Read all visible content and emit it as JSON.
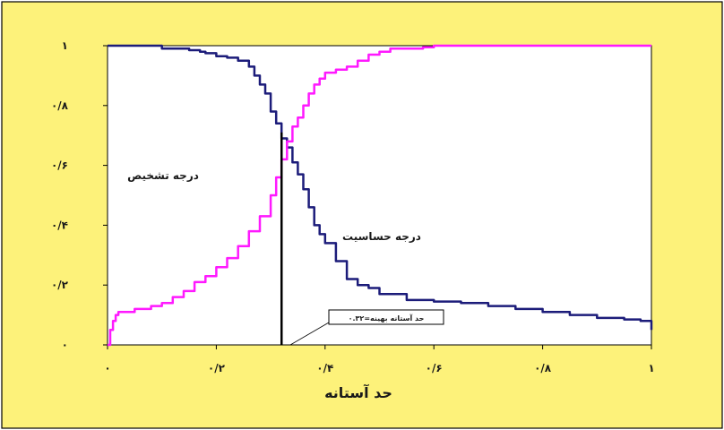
{
  "chart_data": {
    "type": "line",
    "xlabel": "حد آستانه",
    "ylabel": "",
    "xlim": [
      0,
      1
    ],
    "ylim": [
      0,
      1
    ],
    "x_ticks": [
      {
        "value": 0,
        "label": "۰"
      },
      {
        "value": 0.2,
        "label": "۰/۲"
      },
      {
        "value": 0.4,
        "label": "۰/۴"
      },
      {
        "value": 0.6,
        "label": "۰/۶"
      },
      {
        "value": 0.8,
        "label": "۰/۸"
      },
      {
        "value": 1,
        "label": "۱"
      }
    ],
    "y_ticks": [
      {
        "value": 0,
        "label": "۰"
      },
      {
        "value": 0.2,
        "label": "۰/۲"
      },
      {
        "value": 0.4,
        "label": "۰/۴"
      },
      {
        "value": 0.6,
        "label": "۰/۶"
      },
      {
        "value": 0.8,
        "label": "۰/۸"
      },
      {
        "value": 1,
        "label": "۱"
      }
    ],
    "grid": false,
    "legend": "none",
    "colors": {
      "background": "#fdf27a",
      "plot_area": "#ffffff",
      "sensitivity": "#1c1c7a",
      "specificity": "#ff19ff",
      "threshold": "#000000"
    },
    "series": [
      {
        "color": "#1c1c7a",
        "x": [
          0.0,
          0.05,
          0.1,
          0.12,
          0.15,
          0.17,
          0.18,
          0.2,
          0.22,
          0.24,
          0.26,
          0.27,
          0.28,
          0.29,
          0.3,
          0.31,
          0.32,
          0.33,
          0.34,
          0.35,
          0.36,
          0.37,
          0.38,
          0.39,
          0.4,
          0.42,
          0.44,
          0.46,
          0.48,
          0.5,
          0.55,
          0.6,
          0.65,
          0.7,
          0.75,
          0.8,
          0.85,
          0.9,
          0.95,
          0.98,
          1.0
        ],
        "y": [
          1.0,
          1.0,
          0.99,
          0.99,
          0.985,
          0.98,
          0.975,
          0.965,
          0.96,
          0.95,
          0.93,
          0.9,
          0.87,
          0.84,
          0.78,
          0.74,
          0.69,
          0.66,
          0.61,
          0.57,
          0.52,
          0.46,
          0.4,
          0.37,
          0.34,
          0.28,
          0.22,
          0.2,
          0.19,
          0.17,
          0.15,
          0.145,
          0.14,
          0.13,
          0.12,
          0.11,
          0.1,
          0.09,
          0.085,
          0.08,
          0.05
        ]
      },
      {
        "color": "#ff19ff",
        "x": [
          0.0,
          0.005,
          0.01,
          0.015,
          0.02,
          0.05,
          0.08,
          0.1,
          0.12,
          0.14,
          0.16,
          0.18,
          0.2,
          0.22,
          0.24,
          0.26,
          0.28,
          0.3,
          0.31,
          0.32,
          0.33,
          0.34,
          0.35,
          0.36,
          0.37,
          0.38,
          0.39,
          0.4,
          0.42,
          0.44,
          0.46,
          0.48,
          0.5,
          0.52,
          0.55,
          0.58,
          0.6,
          0.65,
          0.7,
          0.8,
          0.9,
          1.0
        ],
        "y": [
          0.0,
          0.05,
          0.08,
          0.1,
          0.11,
          0.12,
          0.13,
          0.14,
          0.16,
          0.18,
          0.21,
          0.23,
          0.26,
          0.29,
          0.33,
          0.38,
          0.43,
          0.5,
          0.56,
          0.62,
          0.68,
          0.73,
          0.76,
          0.8,
          0.84,
          0.87,
          0.89,
          0.91,
          0.92,
          0.93,
          0.95,
          0.97,
          0.98,
          0.99,
          0.99,
          0.995,
          1.0,
          1.0,
          1.0,
          1.0,
          1.0,
          1.0
        ]
      }
    ],
    "threshold": {
      "x": 0.32
    },
    "annotations": {
      "specificity_label": "درجه تشخیص",
      "sensitivity_label": "درجه حساسیت",
      "threshold_callout": "۰.۳۲=حد آستانه بهینه"
    }
  }
}
